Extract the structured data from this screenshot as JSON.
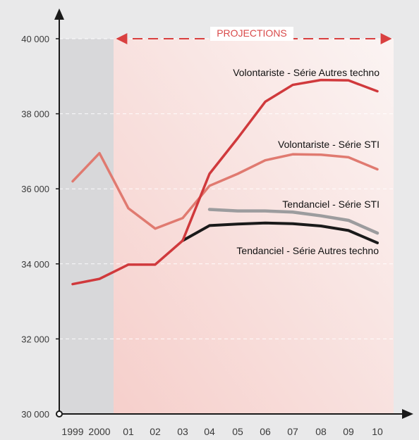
{
  "colors": {
    "background": "#e9e9ea",
    "history_band": "#d8d8da",
    "projection_band_start": "#f6cfcb",
    "projection_band_end": "#fbf4f3",
    "axis": "#1a1a1a",
    "projection_marker": "#d94040"
  },
  "chart_data": {
    "type": "line",
    "x": [
      "1999",
      "2000",
      "01",
      "02",
      "03",
      "04",
      "05",
      "06",
      "07",
      "08",
      "09",
      "10"
    ],
    "ylim": [
      30000,
      40000
    ],
    "yticks": [
      30000,
      32000,
      34000,
      36000,
      38000,
      40000
    ],
    "yticklabels": [
      "30 000",
      "32 000",
      "34 000",
      "36 000",
      "38 000",
      "40 000"
    ],
    "grid": true,
    "title": "",
    "xlabel": "",
    "ylabel": "",
    "projection": {
      "label": "PROJECTIONS",
      "from": "01",
      "to": "10"
    },
    "series": [
      {
        "name": "Volontariste - Série Autres techno",
        "color": "#d0393c",
        "values": [
          33460,
          33600,
          33980,
          33980,
          34620,
          36400,
          37350,
          38320,
          38770,
          38900,
          38890,
          38600
        ]
      },
      {
        "name": "Volontariste - Série STI",
        "color": "#e07a70",
        "values": [
          36200,
          36950,
          35480,
          34940,
          35220,
          36080,
          36400,
          36760,
          36920,
          36910,
          36840,
          36520
        ]
      },
      {
        "name": "Tendanciel - Série STI",
        "color": "#9c9c9e",
        "values": [
          null,
          null,
          null,
          null,
          null,
          35450,
          35410,
          35410,
          35380,
          35280,
          35160,
          34820
        ]
      },
      {
        "name": "Tendanciel - Série Autres techno",
        "color": "#1a1a1a",
        "values": [
          null,
          null,
          null,
          null,
          34620,
          35020,
          35060,
          35090,
          35070,
          35010,
          34890,
          34560
        ]
      }
    ]
  }
}
